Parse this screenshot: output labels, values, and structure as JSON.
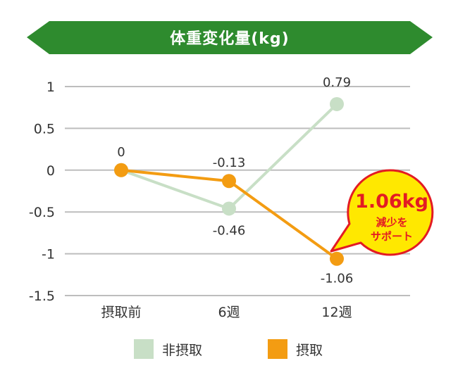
{
  "chart_data": {
    "type": "line",
    "title": "体重変化量(kg)",
    "categories": [
      "摂取前",
      "6週",
      "12週"
    ],
    "ylim": [
      -1.5,
      1
    ],
    "yticks": [
      "1",
      "0.5",
      "0",
      "-0.5",
      "-1",
      "-1.5"
    ],
    "ytick_values": [
      1,
      0.5,
      0,
      -0.5,
      -1,
      -1.5
    ],
    "grid": true,
    "legend_position": "bottom",
    "series": [
      {
        "name": "非摂取",
        "values": [
          0,
          -0.46,
          0.79
        ],
        "labels": [
          "",
          "-0.46",
          "0.79"
        ],
        "color": "#c8dfc6"
      },
      {
        "name": "摂取",
        "values": [
          0,
          -0.13,
          -1.06
        ],
        "labels": [
          "0",
          "-0.13",
          "-1.06"
        ],
        "color": "#f39c12"
      }
    ],
    "callout": {
      "value": "1.06kg",
      "text_line1": "減少を",
      "text_line2": "サポート"
    }
  },
  "colors": {
    "title_band": "#2e8b2e",
    "grid": "#bdbdbd",
    "callout_fill": "#ffe800",
    "callout_border": "#e31b23"
  }
}
